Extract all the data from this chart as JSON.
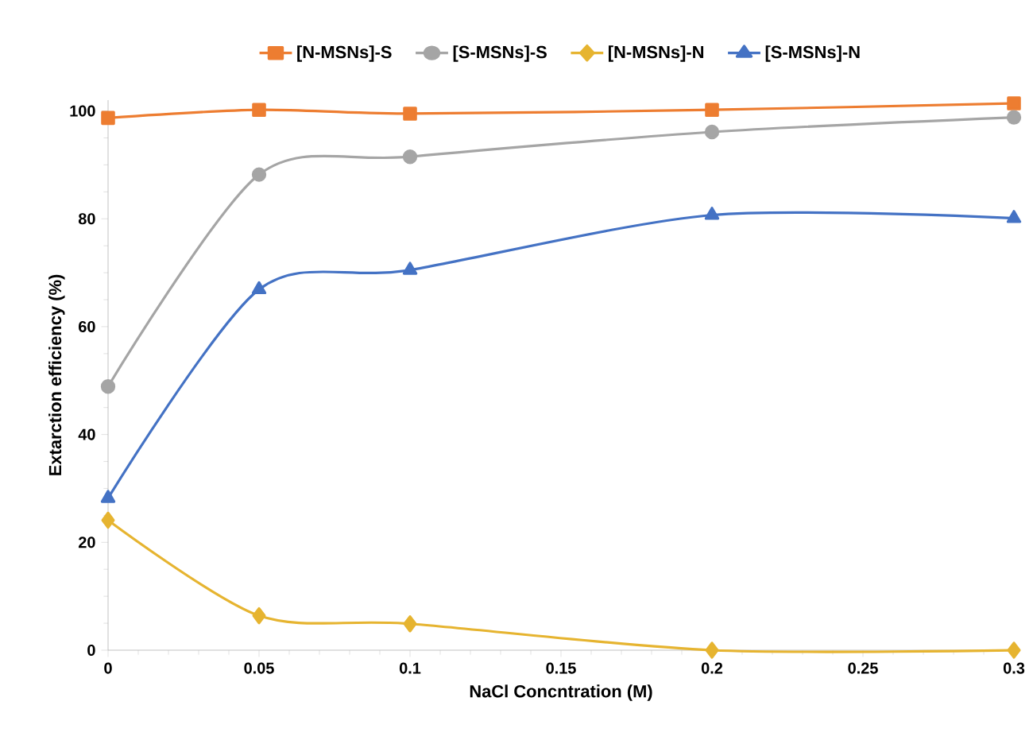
{
  "chart_data": {
    "type": "line",
    "xlabel": "NaCl Concntration (M)",
    "ylabel": "Extarction efficiency  (%)",
    "x": [
      0,
      0.05,
      0.1,
      0.2,
      0.3
    ],
    "series": [
      {
        "name": "[N-MSNs]-S",
        "color": "#ed7d31",
        "marker": "square",
        "values": [
          98.7,
          100.2,
          99.5,
          100.2,
          101.4
        ]
      },
      {
        "name": "[S-MSNs]-S",
        "color": "#a5a5a5",
        "marker": "circle",
        "values": [
          48.9,
          88.2,
          91.5,
          96.1,
          98.8
        ]
      },
      {
        "name": "[N-MSNs]-N",
        "color": "#e6b430",
        "marker": "diamond",
        "values": [
          24.1,
          6.4,
          4.9,
          0,
          0
        ]
      },
      {
        "name": "[S-MSNs]-N",
        "color": "#4472c4",
        "marker": "triangle",
        "values": [
          28.2,
          66.9,
          70.5,
          80.7,
          80.1
        ]
      }
    ],
    "xlim": [
      0,
      0.3
    ],
    "ylim": [
      0,
      102
    ],
    "xticks": [
      0,
      0.05,
      0.1,
      0.15,
      0.2,
      0.25,
      0.3
    ],
    "yticks": [
      0,
      20,
      40,
      60,
      80,
      100
    ],
    "legend": "top",
    "grid": false,
    "line_style": "solid"
  }
}
